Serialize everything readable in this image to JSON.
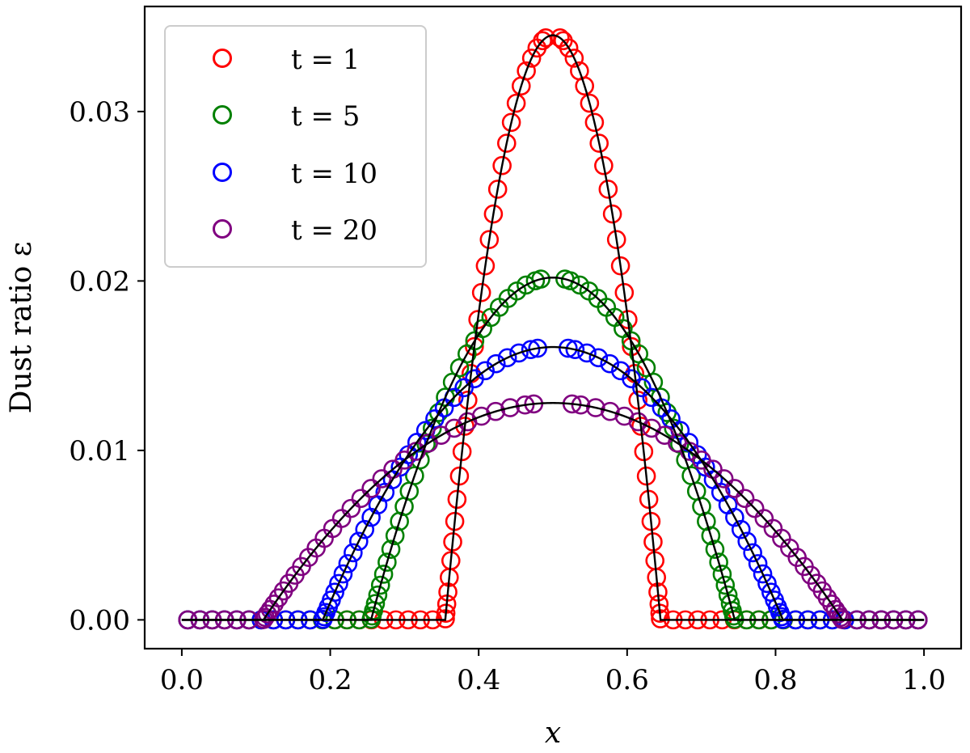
{
  "chart_data": {
    "type": "scatter",
    "title": "",
    "xlabel": "x",
    "ylabel": "Dust ratio ε",
    "xlim": [
      -0.05,
      1.05
    ],
    "ylim": [
      -0.0017,
      0.0362
    ],
    "x_ticks": [
      0.0,
      0.2,
      0.4,
      0.6,
      0.8,
      1.0
    ],
    "x_tick_labels": [
      "0.0",
      "0.2",
      "0.4",
      "0.6",
      "0.8",
      "1.0"
    ],
    "y_ticks": [
      0.0,
      0.01,
      0.02,
      0.03
    ],
    "y_tick_labels": [
      "0.00",
      "0.01",
      "0.02",
      "0.03"
    ],
    "legend_position": "top-left",
    "series": [
      {
        "name": "t = 1",
        "color": "#ff0000",
        "peak": 0.0345,
        "half_width": 0.145,
        "marker": "open-circle"
      },
      {
        "name": "t = 5",
        "color": "#008000",
        "peak": 0.0202,
        "half_width": 0.245,
        "marker": "open-circle"
      },
      {
        "name": "t = 10",
        "color": "#0000ff",
        "peak": 0.0161,
        "half_width": 0.31,
        "marker": "open-circle"
      },
      {
        "name": "t = 20",
        "color": "#800080",
        "peak": 0.0128,
        "half_width": 0.39,
        "marker": "open-circle"
      }
    ],
    "analytic_curve_color": "#000000",
    "profile": "parabolic: y = peak * (1 - ((x - 0.5) / half_width)^2) for |x - 0.5| < half_width, else 0"
  }
}
